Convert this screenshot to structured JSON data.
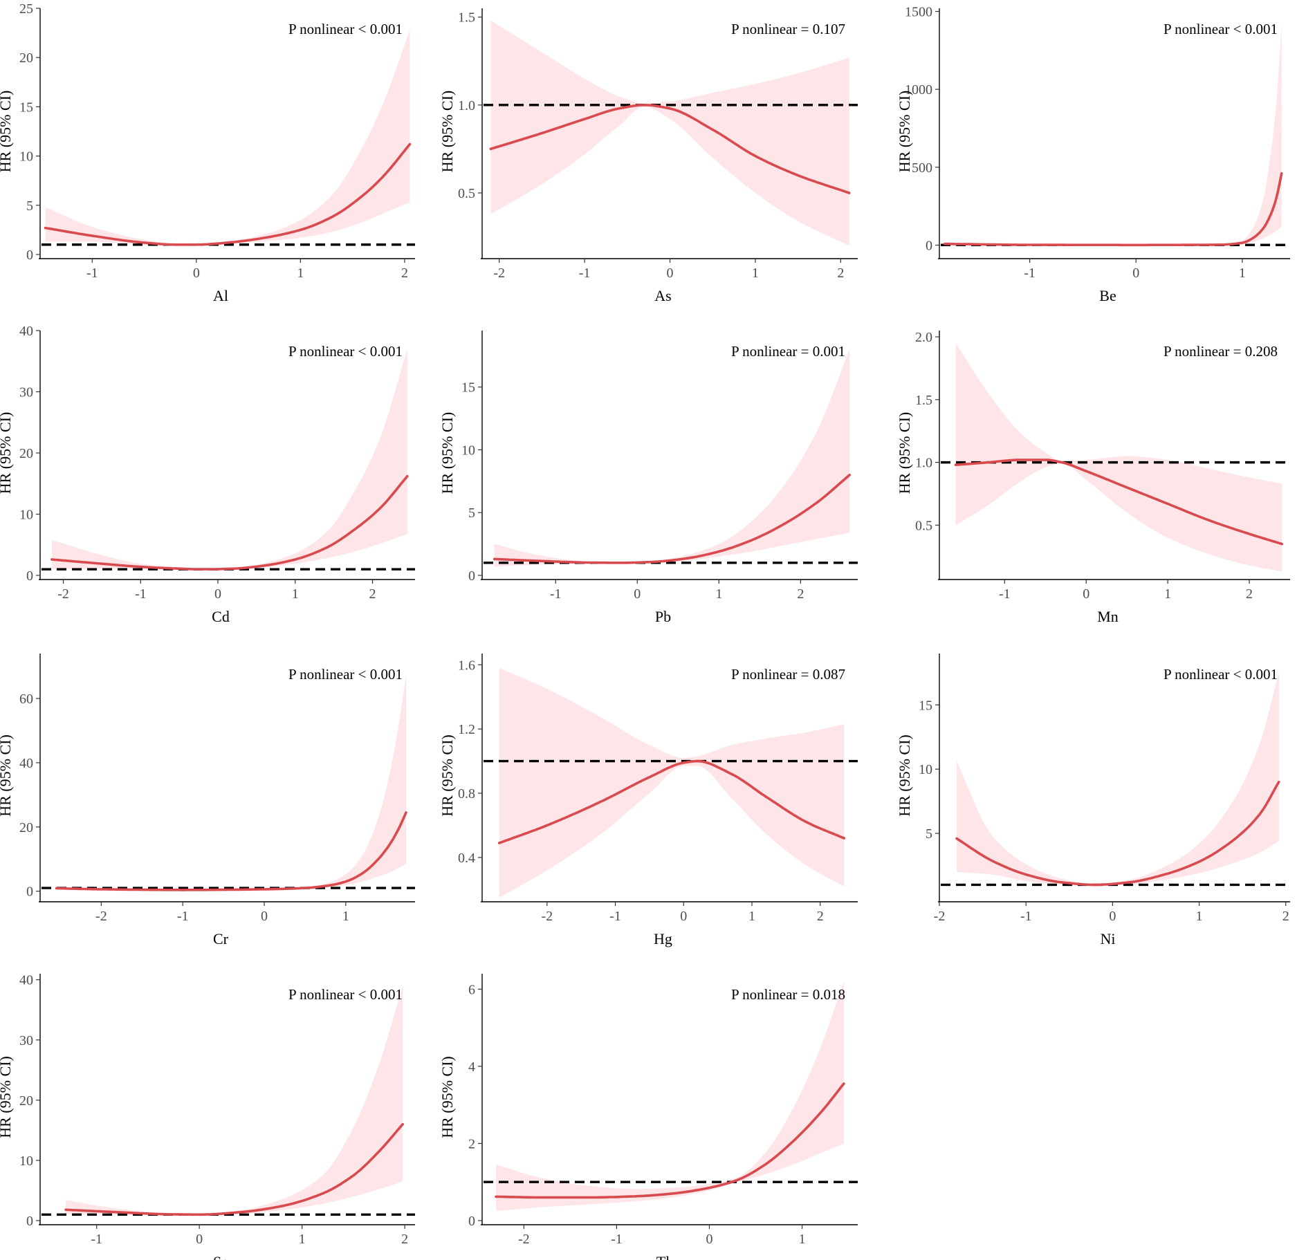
{
  "colors": {
    "curve": "#d94a4f",
    "band": "#fde5e8",
    "reference": "#000000",
    "axis": "#000000"
  },
  "chart_data": [
    {
      "type": "line",
      "element": "Al",
      "xlabel": "Al",
      "ylabel": "HR (95% CI)",
      "annotation": "P nonlinear < 0.001",
      "xlim": [
        -1.5,
        2.1
      ],
      "ylim": [
        0,
        25
      ],
      "xticks": [
        -1,
        0,
        1,
        2
      ],
      "xtick_labels": [
        "-1",
        "0",
        "1",
        "2"
      ],
      "yticks": [
        0,
        5,
        10,
        15,
        20,
        25
      ],
      "ytick_labels": [
        "0",
        "5",
        "10",
        "15",
        "20",
        "25"
      ],
      "reference_hr": 1,
      "x": [
        -1.45,
        -1.0,
        -0.5,
        -0.2,
        0.0,
        0.3,
        0.6,
        1.0,
        1.3,
        1.6,
        1.8,
        2.05
      ],
      "hr": [
        2.7,
        1.9,
        1.2,
        1.0,
        1.0,
        1.2,
        1.6,
        2.5,
        3.8,
        6.0,
        8.0,
        11.2
      ],
      "lower": [
        1.3,
        1.3,
        0.95,
        0.9,
        0.95,
        1.05,
        1.3,
        1.7,
        2.3,
        3.3,
        4.2,
        5.3
      ],
      "upper": [
        4.8,
        2.8,
        1.5,
        1.1,
        1.05,
        1.35,
        1.9,
        3.5,
        6.0,
        11.0,
        15.5,
        22.8
      ]
    },
    {
      "type": "line",
      "element": "As",
      "xlabel": "As",
      "ylabel": "HR (95% CI)",
      "annotation": "P nonlinear = 0.107",
      "xlim": [
        -2.2,
        2.2
      ],
      "ylim": [
        0.15,
        1.55
      ],
      "xticks": [
        -2,
        -1,
        0,
        1,
        2
      ],
      "xtick_labels": [
        "-2",
        "-1",
        "0",
        "1",
        "2"
      ],
      "yticks": [
        0.5,
        1.0,
        1.5
      ],
      "ytick_labels": [
        "0.5",
        "1.0",
        "1.5"
      ],
      "reference_hr": 1,
      "x": [
        -2.1,
        -1.5,
        -1.0,
        -0.6,
        -0.3,
        0.0,
        0.5,
        1.0,
        1.5,
        2.1
      ],
      "hr": [
        0.75,
        0.84,
        0.92,
        0.98,
        1.0,
        0.98,
        0.86,
        0.71,
        0.6,
        0.5
      ],
      "lower": [
        0.38,
        0.55,
        0.72,
        0.88,
        0.99,
        0.92,
        0.7,
        0.5,
        0.34,
        0.2
      ],
      "upper": [
        1.48,
        1.3,
        1.15,
        1.05,
        1.01,
        1.02,
        1.07,
        1.12,
        1.18,
        1.27
      ]
    },
    {
      "type": "line",
      "element": "Be",
      "xlabel": "Be",
      "ylabel": "HR (95% CI)",
      "annotation": "P nonlinear < 0.001",
      "xlim": [
        -1.85,
        1.45
      ],
      "ylim": [
        -60,
        1520
      ],
      "xticks": [
        -1,
        0,
        1
      ],
      "xtick_labels": [
        "-1",
        "0",
        "1"
      ],
      "yticks": [
        0,
        500,
        1000,
        1500
      ],
      "ytick_labels": [
        "0",
        "500",
        "1000",
        "1500"
      ],
      "reference_hr": 1,
      "x": [
        -1.8,
        -1.0,
        0.0,
        0.8,
        1.0,
        1.1,
        1.2,
        1.27,
        1.32,
        1.37
      ],
      "hr": [
        8,
        2,
        1,
        3,
        15,
        45,
        110,
        200,
        300,
        460
      ],
      "lower": [
        3,
        1,
        0.8,
        2,
        8,
        20,
        45,
        70,
        90,
        120
      ],
      "upper": [
        15,
        4,
        1.2,
        6,
        30,
        110,
        300,
        600,
        900,
        1420
      ]
    },
    {
      "type": "line",
      "element": "Cd",
      "xlabel": "Cd",
      "ylabel": "HR (95% CI)",
      "annotation": "P nonlinear < 0.001",
      "xlim": [
        -2.3,
        2.55
      ],
      "ylim": [
        0,
        40
      ],
      "xticks": [
        -2,
        -1,
        0,
        1,
        2
      ],
      "xtick_labels": [
        "-2",
        "-1",
        "0",
        "1",
        "2"
      ],
      "yticks": [
        0,
        10,
        20,
        30,
        40
      ],
      "ytick_labels": [
        "0",
        "10",
        "20",
        "30",
        "40"
      ],
      "reference_hr": 1,
      "x": [
        -2.15,
        -1.5,
        -1.0,
        -0.5,
        -0.2,
        0.2,
        0.6,
        1.0,
        1.4,
        1.8,
        2.1,
        2.45
      ],
      "hr": [
        2.6,
        1.9,
        1.4,
        1.1,
        1.0,
        1.1,
        1.6,
        2.6,
        4.5,
        7.8,
        11.0,
        16.2
      ],
      "lower": [
        1.0,
        1.1,
        1.05,
        0.95,
        0.95,
        1.0,
        1.3,
        1.9,
        2.8,
        4.0,
        5.2,
        6.8
      ],
      "upper": [
        5.8,
        3.3,
        1.9,
        1.3,
        1.05,
        1.25,
        2.0,
        3.6,
        7.0,
        14.5,
        22.5,
        37.0
      ]
    },
    {
      "type": "line",
      "element": "Pb",
      "xlabel": "Pb",
      "ylabel": "HR (95% CI)",
      "annotation": "P nonlinear = 0.001",
      "xlim": [
        -1.9,
        2.7
      ],
      "ylim": [
        0,
        19.5
      ],
      "xticks": [
        -1,
        0,
        1,
        2
      ],
      "xtick_labels": [
        "-1",
        "0",
        "1",
        "2"
      ],
      "yticks": [
        0,
        5,
        10,
        15
      ],
      "ytick_labels": [
        "0",
        "5",
        "10",
        "15"
      ],
      "reference_hr": 1,
      "x": [
        -1.75,
        -1.2,
        -0.6,
        -0.2,
        0.2,
        0.6,
        1.0,
        1.4,
        1.8,
        2.2,
        2.6
      ],
      "hr": [
        1.3,
        1.15,
        1.02,
        1.0,
        1.08,
        1.35,
        1.9,
        2.8,
        4.1,
        5.8,
        8.0
      ],
      "lower": [
        0.7,
        0.85,
        0.95,
        0.97,
        1.0,
        1.15,
        1.5,
        1.9,
        2.4,
        2.9,
        3.4
      ],
      "upper": [
        2.5,
        1.6,
        1.1,
        1.03,
        1.15,
        1.6,
        2.5,
        4.3,
        7.2,
        11.5,
        18.0
      ]
    },
    {
      "type": "line",
      "element": "Mn",
      "xlabel": "Mn",
      "ylabel": "HR (95% CI)",
      "annotation": "P nonlinear = 0.208",
      "xlim": [
        -1.8,
        2.5
      ],
      "ylim": [
        0.1,
        2.05
      ],
      "xticks": [
        -1,
        0,
        1,
        2
      ],
      "xtick_labels": [
        "-1",
        "0",
        "1",
        "2"
      ],
      "yticks": [
        0.5,
        1.0,
        1.5,
        2.0
      ],
      "ytick_labels": [
        "0.5",
        "1.0",
        "1.5",
        "2.0"
      ],
      "reference_hr": 1,
      "x": [
        -1.6,
        -1.2,
        -0.8,
        -0.5,
        -0.3,
        0.0,
        0.5,
        1.0,
        1.5,
        2.0,
        2.4
      ],
      "hr": [
        0.98,
        1.0,
        1.02,
        1.02,
        1.0,
        0.93,
        0.8,
        0.67,
        0.54,
        0.43,
        0.35
      ],
      "lower": [
        0.5,
        0.66,
        0.85,
        0.96,
        0.99,
        0.86,
        0.6,
        0.4,
        0.27,
        0.18,
        0.13
      ],
      "upper": [
        1.95,
        1.55,
        1.23,
        1.08,
        1.01,
        1.02,
        1.05,
        1.02,
        0.95,
        0.88,
        0.83
      ]
    },
    {
      "type": "line",
      "element": "Cr",
      "xlabel": "Cr",
      "ylabel": "HR (95% CI)",
      "annotation": "P nonlinear < 0.001",
      "xlim": [
        -2.75,
        1.85
      ],
      "ylim": [
        -2,
        74
      ],
      "xticks": [
        -2,
        -1,
        0,
        1
      ],
      "xtick_labels": [
        "-2",
        "-1",
        "0",
        "1"
      ],
      "yticks": [
        0,
        20,
        40,
        60
      ],
      "ytick_labels": [
        "0",
        "20",
        "40",
        "60"
      ],
      "reference_hr": 1,
      "x": [
        -2.55,
        -2.0,
        -1.0,
        0.0,
        0.5,
        0.8,
        1.0,
        1.2,
        1.4,
        1.55,
        1.65,
        1.74
      ],
      "hr": [
        0.9,
        0.6,
        0.4,
        0.6,
        1.0,
        1.8,
        3.0,
        5.5,
        10.0,
        15.0,
        19.5,
        24.5
      ],
      "lower": [
        0.6,
        0.4,
        0.3,
        0.5,
        0.8,
        1.3,
        1.9,
        3.0,
        4.6,
        6.0,
        7.3,
        8.5
      ],
      "upper": [
        1.3,
        0.9,
        0.6,
        0.8,
        1.3,
        2.8,
        5.3,
        11.0,
        23.0,
        38.0,
        52.0,
        67.0
      ]
    },
    {
      "type": "line",
      "element": "Hg",
      "xlabel": "Hg",
      "ylabel": "HR (95% CI)",
      "annotation": "P nonlinear = 0.087",
      "xlim": [
        -2.95,
        2.55
      ],
      "ylim": [
        0.15,
        1.67
      ],
      "xticks": [
        -2,
        -1,
        0,
        1,
        2
      ],
      "xtick_labels": [
        "-2",
        "-1",
        "0",
        "1",
        "2"
      ],
      "yticks": [
        0.4,
        0.8,
        1.2,
        1.6
      ],
      "ytick_labels": [
        "0.4",
        "0.8",
        "1.2",
        "1.6"
      ],
      "reference_hr": 1,
      "x": [
        -2.7,
        -2.0,
        -1.2,
        -0.5,
        0.0,
        0.2,
        0.7,
        1.2,
        1.8,
        2.35
      ],
      "hr": [
        0.49,
        0.6,
        0.75,
        0.9,
        0.99,
        1.0,
        0.92,
        0.78,
        0.62,
        0.52
      ],
      "lower": [
        0.15,
        0.32,
        0.55,
        0.8,
        0.97,
        0.97,
        0.77,
        0.55,
        0.35,
        0.22
      ],
      "upper": [
        1.58,
        1.45,
        1.27,
        1.1,
        1.02,
        1.03,
        1.1,
        1.14,
        1.18,
        1.23
      ]
    },
    {
      "type": "line",
      "element": "Ni",
      "xlabel": "Ni",
      "ylabel": "HR (95% CI)",
      "annotation": "P nonlinear < 0.001",
      "xlim": [
        -2.0,
        2.05
      ],
      "ylim": [
        0,
        19
      ],
      "xticks": [
        -2,
        -1,
        0,
        1,
        2
      ],
      "xtick_labels": [
        "-2",
        "-1",
        "0",
        "1",
        "2"
      ],
      "yticks": [
        5,
        10,
        15
      ],
      "ytick_labels": [
        "5",
        "10",
        "15"
      ],
      "reference_hr": 1,
      "x": [
        -1.8,
        -1.4,
        -1.0,
        -0.6,
        -0.2,
        0.2,
        0.6,
        1.0,
        1.4,
        1.7,
        1.92
      ],
      "hr": [
        4.6,
        2.9,
        1.8,
        1.2,
        1.0,
        1.2,
        1.8,
        2.8,
        4.5,
        6.5,
        9.0
      ],
      "lower": [
        2.0,
        1.8,
        1.3,
        1.0,
        0.95,
        1.0,
        1.4,
        1.9,
        2.7,
        3.5,
        4.4
      ],
      "upper": [
        10.6,
        4.9,
        2.6,
        1.5,
        1.05,
        1.4,
        2.4,
        4.2,
        7.6,
        12.0,
        17.5
      ]
    },
    {
      "type": "line",
      "element": "Se",
      "xlabel": "Se",
      "ylabel": "HR (95% CI)",
      "annotation": "P nonlinear < 0.001",
      "xlim": [
        -1.55,
        2.1
      ],
      "ylim": [
        0,
        41
      ],
      "xticks": [
        -1,
        0,
        1,
        2
      ],
      "xtick_labels": [
        "-1",
        "0",
        "1",
        "2"
      ],
      "yticks": [
        0,
        10,
        20,
        30,
        40
      ],
      "ytick_labels": [
        "0",
        "10",
        "20",
        "30",
        "40"
      ],
      "reference_hr": 1,
      "x": [
        -1.3,
        -0.8,
        -0.3,
        0.0,
        0.4,
        0.8,
        1.2,
        1.5,
        1.75,
        1.98
      ],
      "hr": [
        1.8,
        1.4,
        1.05,
        1.0,
        1.4,
        2.4,
        4.5,
        7.5,
        11.5,
        16.0
      ],
      "lower": [
        1.0,
        1.0,
        0.95,
        0.95,
        1.1,
        1.7,
        2.8,
        4.0,
        5.2,
        6.5
      ],
      "upper": [
        3.4,
        2.0,
        1.2,
        1.05,
        1.7,
        3.5,
        7.5,
        15.5,
        26.0,
        39.0
      ]
    },
    {
      "type": "line",
      "element": "Tl",
      "xlabel": "Tl",
      "ylabel": "HR (95% CI)",
      "annotation": "P nonlinear = 0.018",
      "xlim": [
        -2.45,
        1.6
      ],
      "ylim": [
        0,
        6.4
      ],
      "xticks": [
        -2,
        -1,
        0,
        1
      ],
      "xtick_labels": [
        "-2",
        "-1",
        "0",
        "1"
      ],
      "yticks": [
        0,
        2,
        4,
        6
      ],
      "ytick_labels": [
        "0",
        "2",
        "4",
        "6"
      ],
      "reference_hr": 1,
      "x": [
        -2.3,
        -1.8,
        -1.3,
        -0.8,
        -0.4,
        0.0,
        0.3,
        0.6,
        0.9,
        1.2,
        1.45
      ],
      "hr": [
        0.62,
        0.6,
        0.6,
        0.63,
        0.7,
        0.85,
        1.05,
        1.45,
        2.05,
        2.8,
        3.55
      ],
      "lower": [
        0.25,
        0.35,
        0.42,
        0.5,
        0.6,
        0.78,
        1.0,
        1.2,
        1.45,
        1.75,
        2.0
      ],
      "upper": [
        1.45,
        1.1,
        0.9,
        0.82,
        0.85,
        0.95,
        1.12,
        1.75,
        2.9,
        4.5,
        6.2
      ]
    }
  ]
}
